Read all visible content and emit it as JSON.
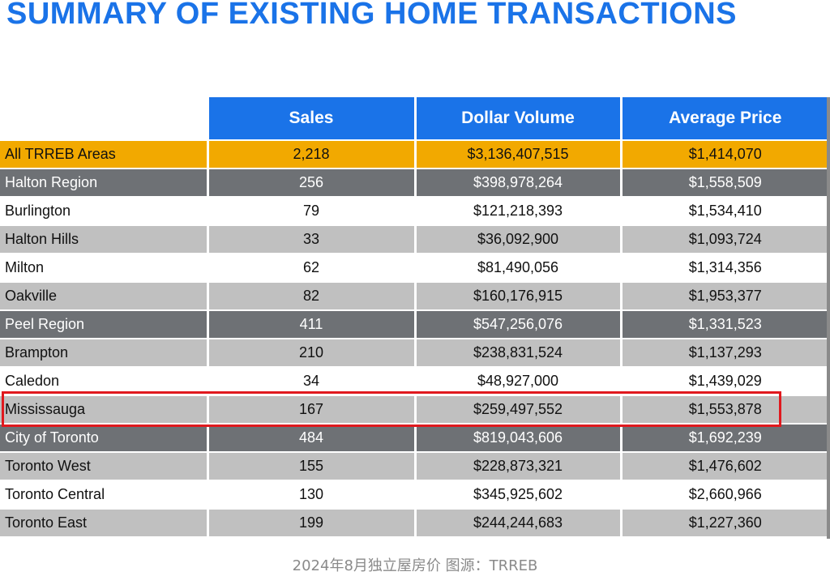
{
  "title": "SUMMARY OF EXISTING HOME TRANSACTIONS",
  "table": {
    "columns": [
      "Sales",
      "Dollar Volume",
      "Average Price"
    ],
    "rows": [
      {
        "area": "All TRREB Areas",
        "sales": "2,218",
        "volume": "$3,136,407,515",
        "avg_price": "$1,414,070",
        "type": "total"
      },
      {
        "area": "Halton Region",
        "sales": "256",
        "volume": "$398,978,264",
        "avg_price": "$1,558,509",
        "type": "region"
      },
      {
        "area": "Burlington",
        "sales": "79",
        "volume": "$121,218,393",
        "avg_price": "$1,534,410",
        "type": "muni-white"
      },
      {
        "area": "Halton Hills",
        "sales": "33",
        "volume": "$36,092,900",
        "avg_price": "$1,093,724",
        "type": "muni-grey"
      },
      {
        "area": "Milton",
        "sales": "62",
        "volume": "$81,490,056",
        "avg_price": "$1,314,356",
        "type": "muni-white"
      },
      {
        "area": "Oakville",
        "sales": "82",
        "volume": "$160,176,915",
        "avg_price": "$1,953,377",
        "type": "muni-grey"
      },
      {
        "area": "Peel Region",
        "sales": "411",
        "volume": "$547,256,076",
        "avg_price": "$1,331,523",
        "type": "region"
      },
      {
        "area": "Brampton",
        "sales": "210",
        "volume": "$238,831,524",
        "avg_price": "$1,137,293",
        "type": "muni-grey"
      },
      {
        "area": "Caledon",
        "sales": "34",
        "volume": "$48,927,000",
        "avg_price": "$1,439,029",
        "type": "muni-white"
      },
      {
        "area": "Mississauga",
        "sales": "167",
        "volume": "$259,497,552",
        "avg_price": "$1,553,878",
        "type": "muni-grey"
      },
      {
        "area": "City of Toronto",
        "sales": "484",
        "volume": "$819,043,606",
        "avg_price": "$1,692,239",
        "type": "region"
      },
      {
        "area": "Toronto West",
        "sales": "155",
        "volume": "$228,873,321",
        "avg_price": "$1,476,602",
        "type": "muni-grey"
      },
      {
        "area": "Toronto Central",
        "sales": "130",
        "volume": "$345,925,602",
        "avg_price": "$2,660,966",
        "type": "muni-white"
      },
      {
        "area": "Toronto East",
        "sales": "199",
        "volume": "$244,244,683",
        "avg_price": "$1,227,360",
        "type": "muni-grey"
      }
    ]
  },
  "caption": "2024年8月独立屋房价  图源：TRREB",
  "colors": {
    "header_blue": "#1a73e8",
    "total_orange": "#f2a900",
    "region_grey": "#6e7175",
    "row_grey": "#c0c0c0",
    "highlight_red": "#e0191e"
  }
}
